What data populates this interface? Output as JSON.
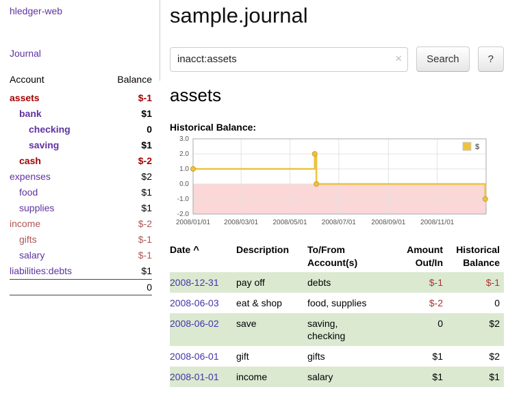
{
  "sidebar": {
    "app_title": "hledger-web",
    "journal_link": "Journal",
    "table": {
      "account_header": "Account",
      "balance_header": "Balance",
      "rows": [
        {
          "name": "assets",
          "indent": 0,
          "bold": true,
          "name_style": "negstrong",
          "balance": "$-1",
          "balance_style": "negstrong"
        },
        {
          "name": "bank",
          "indent": 1,
          "bold": true,
          "name_style": "link",
          "balance": "$1",
          "balance_style": "num"
        },
        {
          "name": "checking",
          "indent": 2,
          "bold": true,
          "name_style": "link",
          "balance": "0",
          "balance_style": "num"
        },
        {
          "name": "saving",
          "indent": 2,
          "bold": true,
          "name_style": "link",
          "balance": "$1",
          "balance_style": "num"
        },
        {
          "name": "cash",
          "indent": 1,
          "bold": true,
          "name_style": "negstrong",
          "balance": "$-2",
          "balance_style": "negstrong"
        },
        {
          "name": "expenses",
          "indent": 0,
          "bold": false,
          "name_style": "link",
          "balance": "$2",
          "balance_style": "num"
        },
        {
          "name": "food",
          "indent": 1,
          "bold": false,
          "name_style": "link",
          "balance": "$1",
          "balance_style": "num"
        },
        {
          "name": "supplies",
          "indent": 1,
          "bold": false,
          "name_style": "link",
          "balance": "$1",
          "balance_style": "num"
        },
        {
          "name": "income",
          "indent": 0,
          "bold": false,
          "name_style": "negdim",
          "balance": "$-2",
          "balance_style": "negdim"
        },
        {
          "name": "gifts",
          "indent": 1,
          "bold": false,
          "name_style": "negdim",
          "balance": "$-1",
          "balance_style": "negdim"
        },
        {
          "name": "salary",
          "indent": 1,
          "bold": false,
          "name_style": "link",
          "balance": "$-1",
          "balance_style": "negdim"
        },
        {
          "name": "liabilities:debts",
          "indent": 0,
          "bold": false,
          "name_style": "link",
          "balance": "$1",
          "balance_style": "num"
        }
      ],
      "total": "0"
    }
  },
  "main": {
    "title": "sample.journal",
    "search": {
      "value": "inacct:assets",
      "clear_icon": "×",
      "search_button": "Search",
      "help_button": "?"
    },
    "account_heading": "assets",
    "chart_title": "Historical Balance:"
  },
  "chart_data": {
    "type": "line",
    "step": true,
    "title": "Historical Balance:",
    "series": [
      {
        "name": "$",
        "color": "#edc240",
        "points": [
          [
            "2008-01-01",
            1
          ],
          [
            "2008-06-01",
            2
          ],
          [
            "2008-06-03",
            0
          ],
          [
            "2008-12-31",
            -1
          ]
        ]
      }
    ],
    "x_range": [
      "2008-01-01",
      "2009-01-01"
    ],
    "x_ticks": [
      "2008/01/01",
      "2008/03/01",
      "2008/05/01",
      "2008/07/01",
      "2008/09/01",
      "2008/11/01"
    ],
    "y_ticks": [
      3.0,
      2.0,
      1.0,
      0.0,
      -1.0,
      -2.0
    ],
    "ylim": [
      -2,
      3
    ],
    "grid": true,
    "negative_region_color": "#fbd7d7",
    "legend_position": "top-right"
  },
  "register": {
    "headers": {
      "date": "Date",
      "sort_indicator": "^",
      "description": "Description",
      "account": "To/From\nAccount(s)",
      "amount": "Amount\nOut/In",
      "balance": "Historical\nBalance"
    },
    "rows": [
      {
        "date": "2008-12-31",
        "description": "pay off",
        "account": "debts",
        "amount": "$-1",
        "amount_negative": true,
        "balance": "$-1",
        "balance_negative": true
      },
      {
        "date": "2008-06-03",
        "description": "eat & shop",
        "account": "food, supplies",
        "amount": "$-2",
        "amount_negative": true,
        "balance": "0",
        "balance_negative": false
      },
      {
        "date": "2008-06-02",
        "description": "save",
        "account": "saving,\nchecking",
        "amount": "0",
        "amount_negative": false,
        "balance": "$2",
        "balance_negative": false
      },
      {
        "date": "2008-06-01",
        "description": "gift",
        "account": "gifts",
        "amount": "$1",
        "amount_negative": false,
        "balance": "$2",
        "balance_negative": false
      },
      {
        "date": "2008-01-01",
        "description": "income",
        "account": "salary",
        "amount": "$1",
        "amount_negative": false,
        "balance": "$1",
        "balance_negative": false
      }
    ]
  }
}
